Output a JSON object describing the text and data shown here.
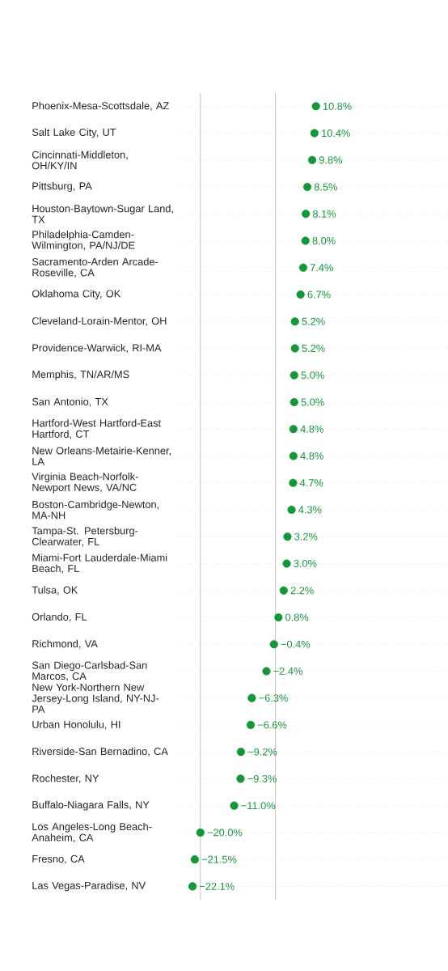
{
  "chart_data": {
    "type": "scatter",
    "orientation": "horizontal",
    "categories": [
      "Phoenix-Mesa-Scottsdale, AZ",
      "Salt Lake City, UT",
      "Cincinnati-Middleton, OH/KY/IN",
      "Pittsburg, PA",
      "Houston-Baytown-Sugar Land, TX",
      "Philadelphia-Camden-Wilmington, PA/NJ/DE",
      "Sacramento-Arden Arcade-Roseville, CA",
      "Oklahoma City, OK",
      "Cleveland-Lorain-Mentor, OH",
      "Providence-Warwick, RI-MA",
      "Memphis, TN/AR/MS",
      "San Antonio, TX",
      "Hartford-West Hartford-East Hartford, CT",
      "New Orleans-Metairie-Kenner, LA",
      "Virginia Beach-Norfolk-Newport News, VA/NC",
      "Boston-Cambridge-Newton, MA-NH",
      "Tampa-St. Petersburg-Clearwater, FL",
      "Miami-Fort Lauderdale-Miami Beach, FL",
      "Tulsa, OK",
      "Orlando, FL",
      "Richmond, VA",
      "San Diego-Carlsbad-San Marcos, CA",
      "New York-Northern New Jersey-Long Island, NY-NJ-PA",
      "Urban Honolulu, HI",
      "Riverside-San Bernadino, CA",
      "Rochester, NY",
      "Buffalo-Niagara Falls, NY",
      "Los Angeles-Long Beach-Anaheim, CA",
      "Fresno, CA",
      "Las Vegas-Paradise, NV"
    ],
    "values": [
      10.8,
      10.4,
      9.8,
      8.5,
      8.1,
      8.0,
      7.4,
      6.7,
      5.2,
      5.2,
      5.0,
      5.0,
      4.8,
      4.8,
      4.7,
      4.3,
      3.2,
      3.0,
      2.2,
      0.8,
      -0.4,
      -2.4,
      -6.3,
      -6.6,
      -9.2,
      -9.3,
      -11.0,
      -20.0,
      -21.5,
      -22.1
    ],
    "value_labels": [
      "10.8%",
      "10.4%",
      "9.8%",
      "8.5%",
      "8.1%",
      "8.0%",
      "7.4%",
      "6.7%",
      "5.2%",
      "5.2%",
      "5.0%",
      "5.0%",
      "4.8%",
      "4.8%",
      "4.7%",
      "4.3%",
      "3.2%",
      "3.0%",
      "2.2%",
      "0.8%",
      "−0.4%",
      "−2.4%",
      "−6.3%",
      "−6.6%",
      "−9.2%",
      "−9.3%",
      "−11.0%",
      "−20.0%",
      "−21.5%",
      "−22.1%"
    ],
    "color": "#15963a",
    "xlim": [
      -26,
      46
    ],
    "xticks": [
      {
        "value": -20,
        "label": null
      },
      {
        "value": 0,
        "label": null
      }
    ],
    "tick_labels": "y",
    "grid": true
  }
}
